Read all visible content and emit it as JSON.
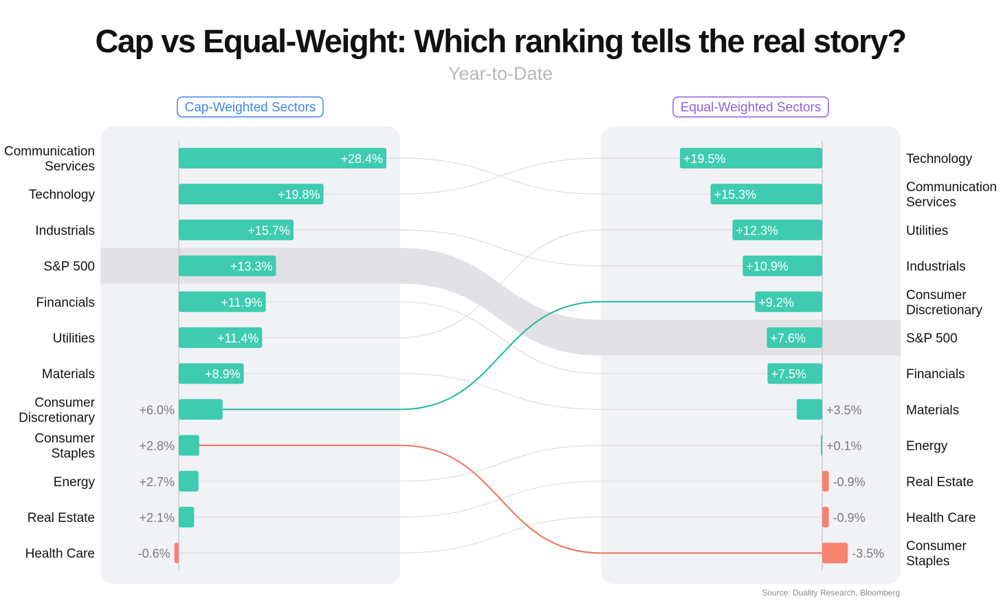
{
  "colors": {
    "positive": "#3ecbb0",
    "negative": "#f7826f",
    "panel": "#f1f2f6",
    "sp_band": "#e2e2e6",
    "link": "#dcdcdf",
    "link_highlight_up": "#1fb99a",
    "link_highlight_down": "#ef6f58",
    "cap_accent": "#3f86e6",
    "equal_accent": "#8e5fe0"
  },
  "chart_data": {
    "type": "bar",
    "title": "Cap vs Equal-Weight: Which ranking tells the real story?",
    "subtitle": "Year-to-Date",
    "source": "Source: Duality Research, Bloomberg",
    "unit": "%",
    "cap_weighted": {
      "title": "Cap-Weighted Sectors",
      "categories": [
        "Communication Services",
        "Technology",
        "Industrials",
        "S&P 500",
        "Financials",
        "Utilities",
        "Materials",
        "Consumer Discretionary",
        "Consumer Staples",
        "Energy",
        "Real Estate",
        "Health Care"
      ],
      "labels": [
        [
          "Communication",
          "Services"
        ],
        [
          "Technology"
        ],
        [
          "Industrials"
        ],
        [
          "S&P 500"
        ],
        [
          "Financials"
        ],
        [
          "Utilities"
        ],
        [
          "Materials"
        ],
        [
          "Consumer",
          "Discretionary"
        ],
        [
          "Consumer",
          "Staples"
        ],
        [
          "Energy"
        ],
        [
          "Real Estate"
        ],
        [
          "Health Care"
        ]
      ],
      "values": [
        28.4,
        19.8,
        15.7,
        13.3,
        11.9,
        11.4,
        8.9,
        6.0,
        2.8,
        2.7,
        2.1,
        -0.6
      ],
      "value_labels": [
        "+28.4%",
        "+19.8%",
        "+15.7%",
        "+13.3%",
        "+11.9%",
        "+11.4%",
        "+8.9%",
        "+6.0%",
        "+2.8%",
        "+2.7%",
        "+2.1%",
        "-0.6%"
      ]
    },
    "equal_weighted": {
      "title": "Equal-Weighted Sectors",
      "categories": [
        "Technology",
        "Communication Services",
        "Utilities",
        "Industrials",
        "Consumer Discretionary",
        "S&P 500",
        "Financials",
        "Materials",
        "Energy",
        "Real Estate",
        "Health Care",
        "Consumer Staples"
      ],
      "labels": [
        [
          "Technology"
        ],
        [
          "Communication",
          "Services"
        ],
        [
          "Utilities"
        ],
        [
          "Industrials"
        ],
        [
          "Consumer",
          "Discretionary"
        ],
        [
          "S&P 500"
        ],
        [
          "Financials"
        ],
        [
          "Materials"
        ],
        [
          "Energy"
        ],
        [
          "Real Estate"
        ],
        [
          "Health Care"
        ],
        [
          "Consumer",
          "Staples"
        ]
      ],
      "values": [
        19.5,
        15.3,
        12.3,
        10.9,
        9.2,
        7.6,
        7.5,
        3.5,
        0.1,
        -0.9,
        -0.9,
        -3.5
      ],
      "value_labels": [
        "+19.5%",
        "+15.3%",
        "+12.3%",
        "+10.9%",
        "+9.2%",
        "+7.6%",
        "+7.5%",
        "+3.5%",
        "+0.1%",
        "-0.9%",
        "-0.9%",
        "-3.5%"
      ]
    },
    "benchmark": "S&P 500",
    "highlighted_links": {
      "up": "Consumer Discretionary",
      "down": "Consumer Staples"
    }
  }
}
